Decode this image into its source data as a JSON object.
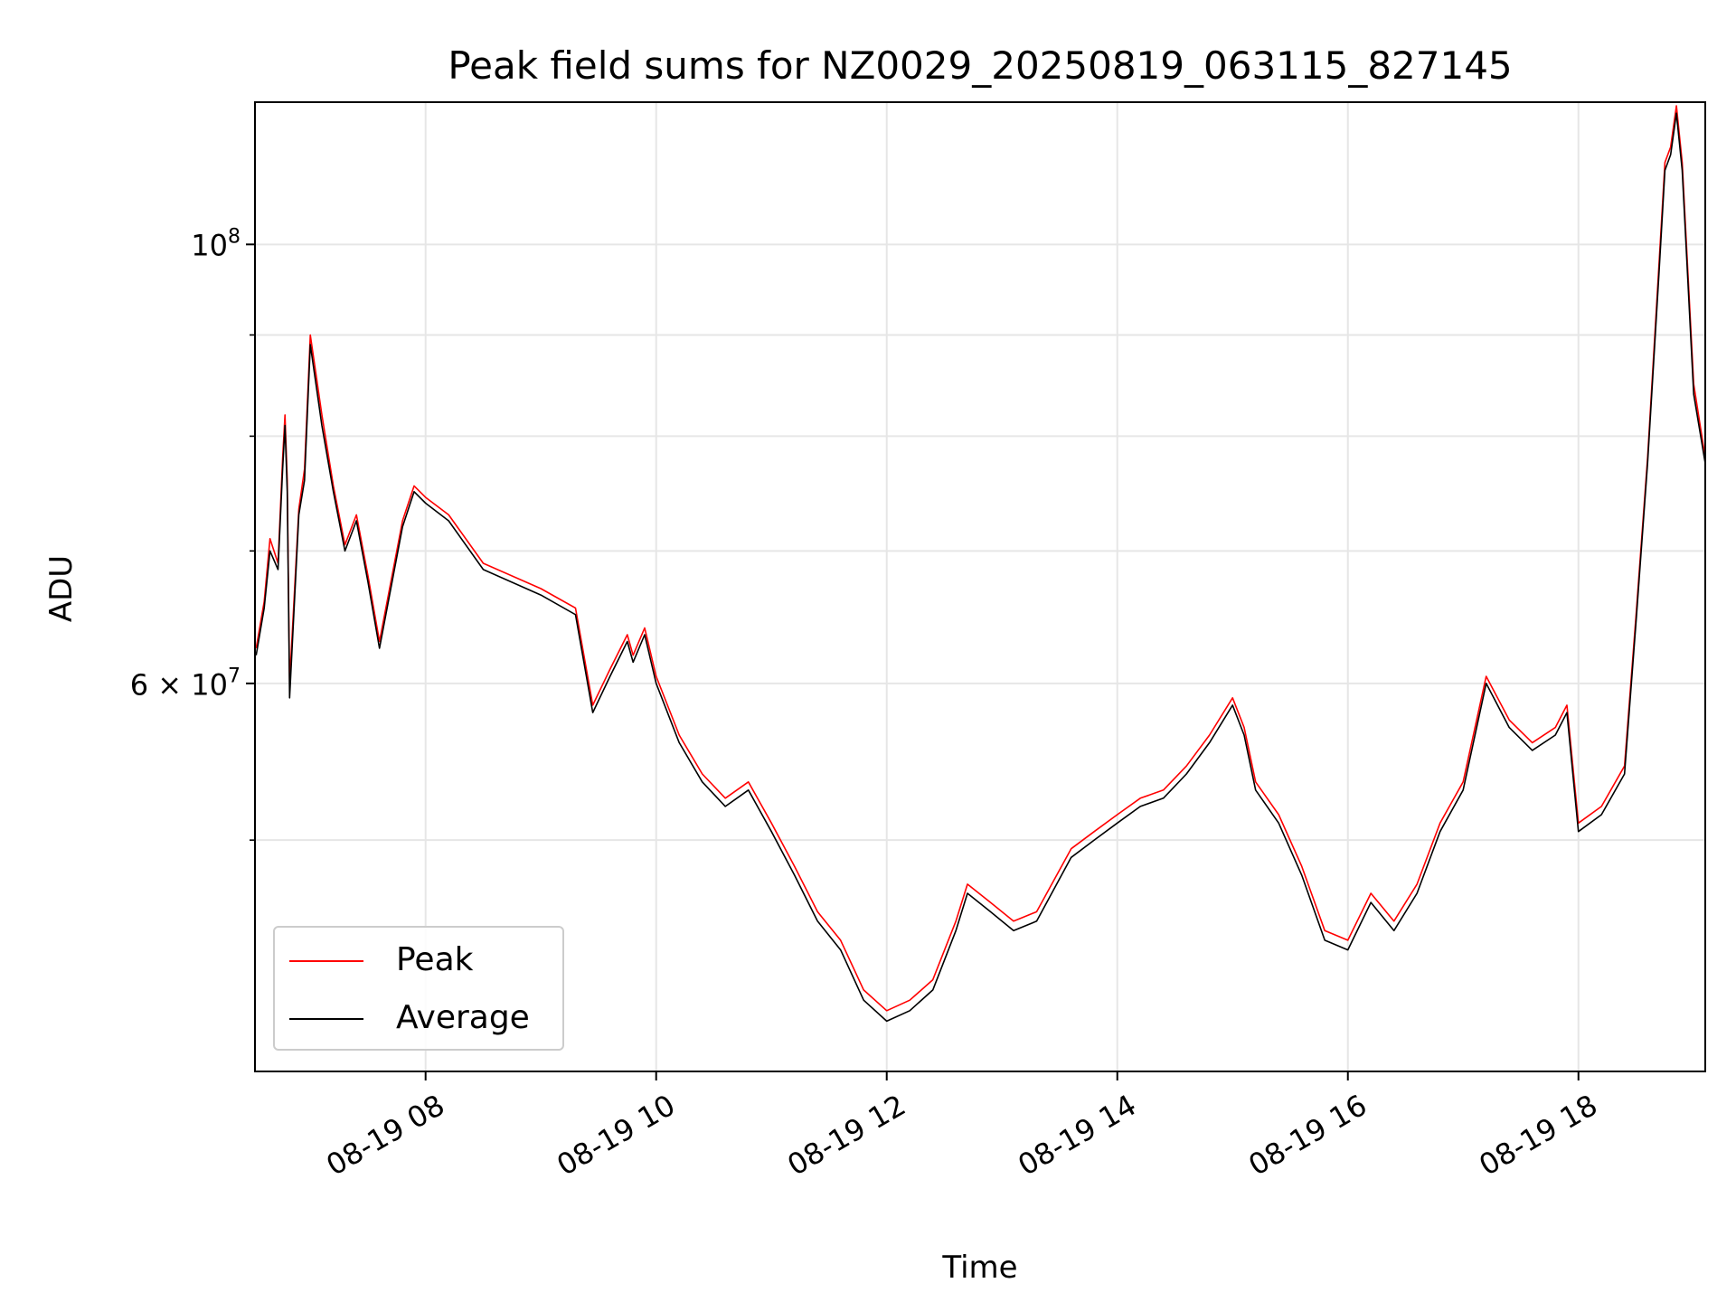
{
  "chart_data": {
    "type": "line",
    "title": "Peak field sums for NZ0029_20250819_063115_827145",
    "xlabel": "Time",
    "ylabel": "ADU",
    "x_unit": "hours (clock time, 2025-08-19)",
    "xlim": [
      6.52,
      19.1
    ],
    "ylim": [
      38200000,
      118000000
    ],
    "yscale": "log",
    "grid": true,
    "legend_location": "lower-left",
    "x_ticks": [
      {
        "value": 8,
        "label": "08-19 08"
      },
      {
        "value": 10,
        "label": "08-19 10"
      },
      {
        "value": 12,
        "label": "08-19 12"
      },
      {
        "value": 14,
        "label": "08-19 14"
      },
      {
        "value": 16,
        "label": "08-19 16"
      },
      {
        "value": 18,
        "label": "08-19 18"
      }
    ],
    "y_ticks": [
      {
        "value": 100000000,
        "base": "10",
        "exponent": "8",
        "mantissa": ""
      },
      {
        "value": 60000000,
        "base": "10",
        "exponent": "7",
        "mantissa": "6 × "
      }
    ],
    "y_minor_ticks": [
      50000000,
      70000000,
      80000000,
      90000000
    ],
    "x": [
      6.53,
      6.6,
      6.65,
      6.72,
      6.76,
      6.78,
      6.8,
      6.82,
      6.9,
      6.95,
      7.0,
      7.1,
      7.2,
      7.3,
      7.4,
      7.5,
      7.6,
      7.8,
      7.9,
      8.0,
      8.2,
      8.5,
      9.0,
      9.3,
      9.45,
      9.6,
      9.75,
      9.8,
      9.9,
      10.0,
      10.2,
      10.4,
      10.6,
      10.8,
      11.0,
      11.2,
      11.4,
      11.6,
      11.8,
      12.0,
      12.2,
      12.4,
      12.6,
      12.7,
      12.9,
      13.1,
      13.3,
      13.6,
      13.8,
      14.0,
      14.2,
      14.4,
      14.6,
      14.8,
      15.0,
      15.1,
      15.2,
      15.4,
      15.6,
      15.8,
      16.0,
      16.2,
      16.4,
      16.6,
      16.8,
      17.0,
      17.2,
      17.4,
      17.6,
      17.8,
      17.9,
      18.0,
      18.2,
      18.4,
      18.5,
      18.6,
      18.7,
      18.75,
      18.8,
      18.85,
      18.9,
      19.0,
      19.1
    ],
    "series": [
      {
        "name": "Peak",
        "color": "#ff0000",
        "values": [
          62500000,
          66000000,
          71000000,
          69000000,
          78000000,
          82000000,
          76000000,
          60000000,
          73500000,
          77000000,
          90000000,
          82000000,
          75500000,
          70500000,
          73000000,
          68000000,
          63000000,
          72500000,
          75500000,
          74500000,
          73000000,
          69000000,
          67000000,
          65500000,
          58500000,
          61000000,
          63500000,
          62000000,
          64000000,
          60500000,
          56500000,
          54000000,
          52500000,
          53500000,
          51000000,
          48500000,
          46000000,
          44500000,
          42000000,
          41000000,
          41500000,
          42500000,
          45500000,
          47500000,
          46500000,
          45500000,
          46000000,
          49500000,
          50500000,
          51500000,
          52500000,
          53000000,
          54500000,
          56500000,
          59000000,
          57000000,
          53500000,
          51500000,
          48500000,
          45000000,
          44500000,
          47000000,
          45500000,
          47500000,
          51000000,
          53500000,
          60500000,
          57500000,
          56000000,
          57000000,
          58500000,
          51000000,
          52000000,
          54500000,
          65000000,
          78000000,
          98000000,
          110000000,
          112000000,
          117500000,
          110000000,
          85000000,
          78000000
        ]
      },
      {
        "name": "Average",
        "color": "#000000",
        "values": [
          62000000,
          65500000,
          70000000,
          68500000,
          77000000,
          81000000,
          75000000,
          59000000,
          73000000,
          76000000,
          89000000,
          81000000,
          75000000,
          70000000,
          72500000,
          67500000,
          62500000,
          72000000,
          75000000,
          74000000,
          72500000,
          68500000,
          66500000,
          65000000,
          58000000,
          60500000,
          63000000,
          61500000,
          63500000,
          60000000,
          56000000,
          53500000,
          52000000,
          53000000,
          50500000,
          48000000,
          45500000,
          44000000,
          41500000,
          40500000,
          41000000,
          42000000,
          45000000,
          47000000,
          46000000,
          45000000,
          45500000,
          49000000,
          50000000,
          51000000,
          52000000,
          52500000,
          54000000,
          56000000,
          58500000,
          56500000,
          53000000,
          51000000,
          48000000,
          44500000,
          44000000,
          46500000,
          45000000,
          47000000,
          50500000,
          53000000,
          60000000,
          57000000,
          55500000,
          56500000,
          58000000,
          50500000,
          51500000,
          54000000,
          64500000,
          77500000,
          97000000,
          109000000,
          111000000,
          116500000,
          109000000,
          84000000,
          77500000
        ]
      }
    ]
  }
}
